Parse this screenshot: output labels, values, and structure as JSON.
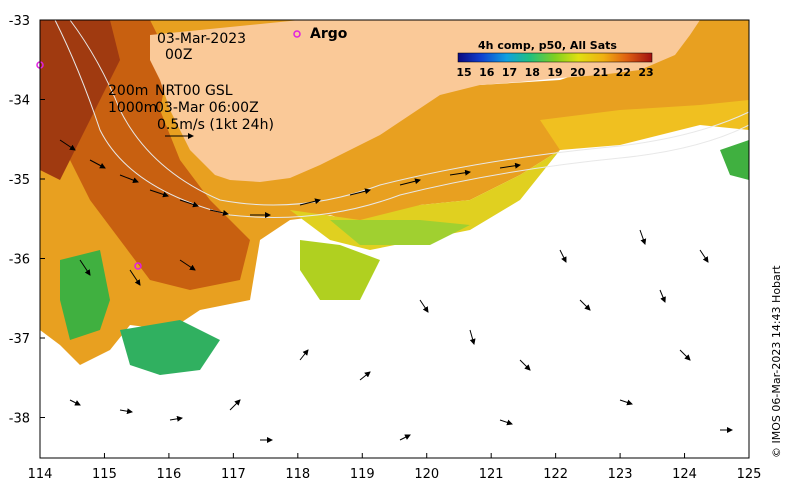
{
  "map": {
    "date_line1": "03-Mar-2023",
    "date_line2": "00Z",
    "contour_200": "200m",
    "contour_1000": "1000m",
    "current_product": "NRT00 GSL",
    "current_time": "03-Mar 06:00Z",
    "scale_arrow": "0.5m/s (1kt 24h)",
    "argo_label": "Argo",
    "credit": "© IMOS 06-Mar-2023 14:43 Hobart"
  },
  "axes": {
    "lon_ticks": [
      "114",
      "115",
      "116",
      "117",
      "118",
      "119",
      "120",
      "121",
      "122",
      "123",
      "124",
      "125"
    ],
    "lat_ticks": [
      "-33",
      "-34",
      "-35",
      "-36",
      "-37",
      "-38"
    ]
  },
  "colorbar": {
    "title": "4h comp, p50, All Sats",
    "tick_labels": [
      "15",
      "16",
      "17",
      "18",
      "19",
      "20",
      "21",
      "22",
      "23"
    ]
  },
  "colors": {
    "land": "#fac998",
    "argo": "#e020e0"
  }
}
